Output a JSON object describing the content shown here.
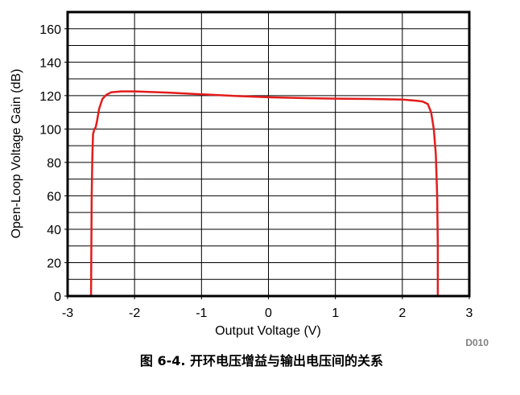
{
  "chart_data": {
    "type": "line",
    "title": "",
    "xlabel": "Output Voltage (V)",
    "ylabel": "Open-Loop Voltage Gain (dB)",
    "xlim": [
      -3,
      3
    ],
    "ylim": [
      0,
      170
    ],
    "x_ticks": [
      -3,
      -2,
      -1,
      0,
      1,
      2,
      3
    ],
    "y_ticks": [
      0,
      20,
      40,
      60,
      80,
      100,
      120,
      140,
      160
    ],
    "grid": true,
    "legend": "none",
    "series": [
      {
        "color": "#e31c1c",
        "points": [
          [
            -2.65,
            0
          ],
          [
            -2.64,
            60
          ],
          [
            -2.63,
            85
          ],
          [
            -2.62,
            97
          ],
          [
            -2.6,
            100
          ],
          [
            -2.58,
            101
          ],
          [
            -2.56,
            105
          ],
          [
            -2.53,
            112
          ],
          [
            -2.48,
            118
          ],
          [
            -2.42,
            120.5
          ],
          [
            -2.35,
            122
          ],
          [
            -2.2,
            122.5
          ],
          [
            -2.0,
            122.5
          ],
          [
            -1.5,
            121.8
          ],
          [
            -1.0,
            120.8
          ],
          [
            -0.5,
            119.8
          ],
          [
            0.0,
            119
          ],
          [
            0.5,
            118.5
          ],
          [
            1.0,
            118.2
          ],
          [
            1.5,
            118
          ],
          [
            2.0,
            117.6
          ],
          [
            2.2,
            117
          ],
          [
            2.3,
            116.5
          ],
          [
            2.38,
            115
          ],
          [
            2.43,
            110
          ],
          [
            2.47,
            100
          ],
          [
            2.5,
            85
          ],
          [
            2.52,
            60
          ],
          [
            2.53,
            30
          ],
          [
            2.53,
            0
          ]
        ]
      }
    ]
  },
  "code_label": "D010",
  "caption": "图 6-4. 开环电压增益与输出电压间的关系"
}
